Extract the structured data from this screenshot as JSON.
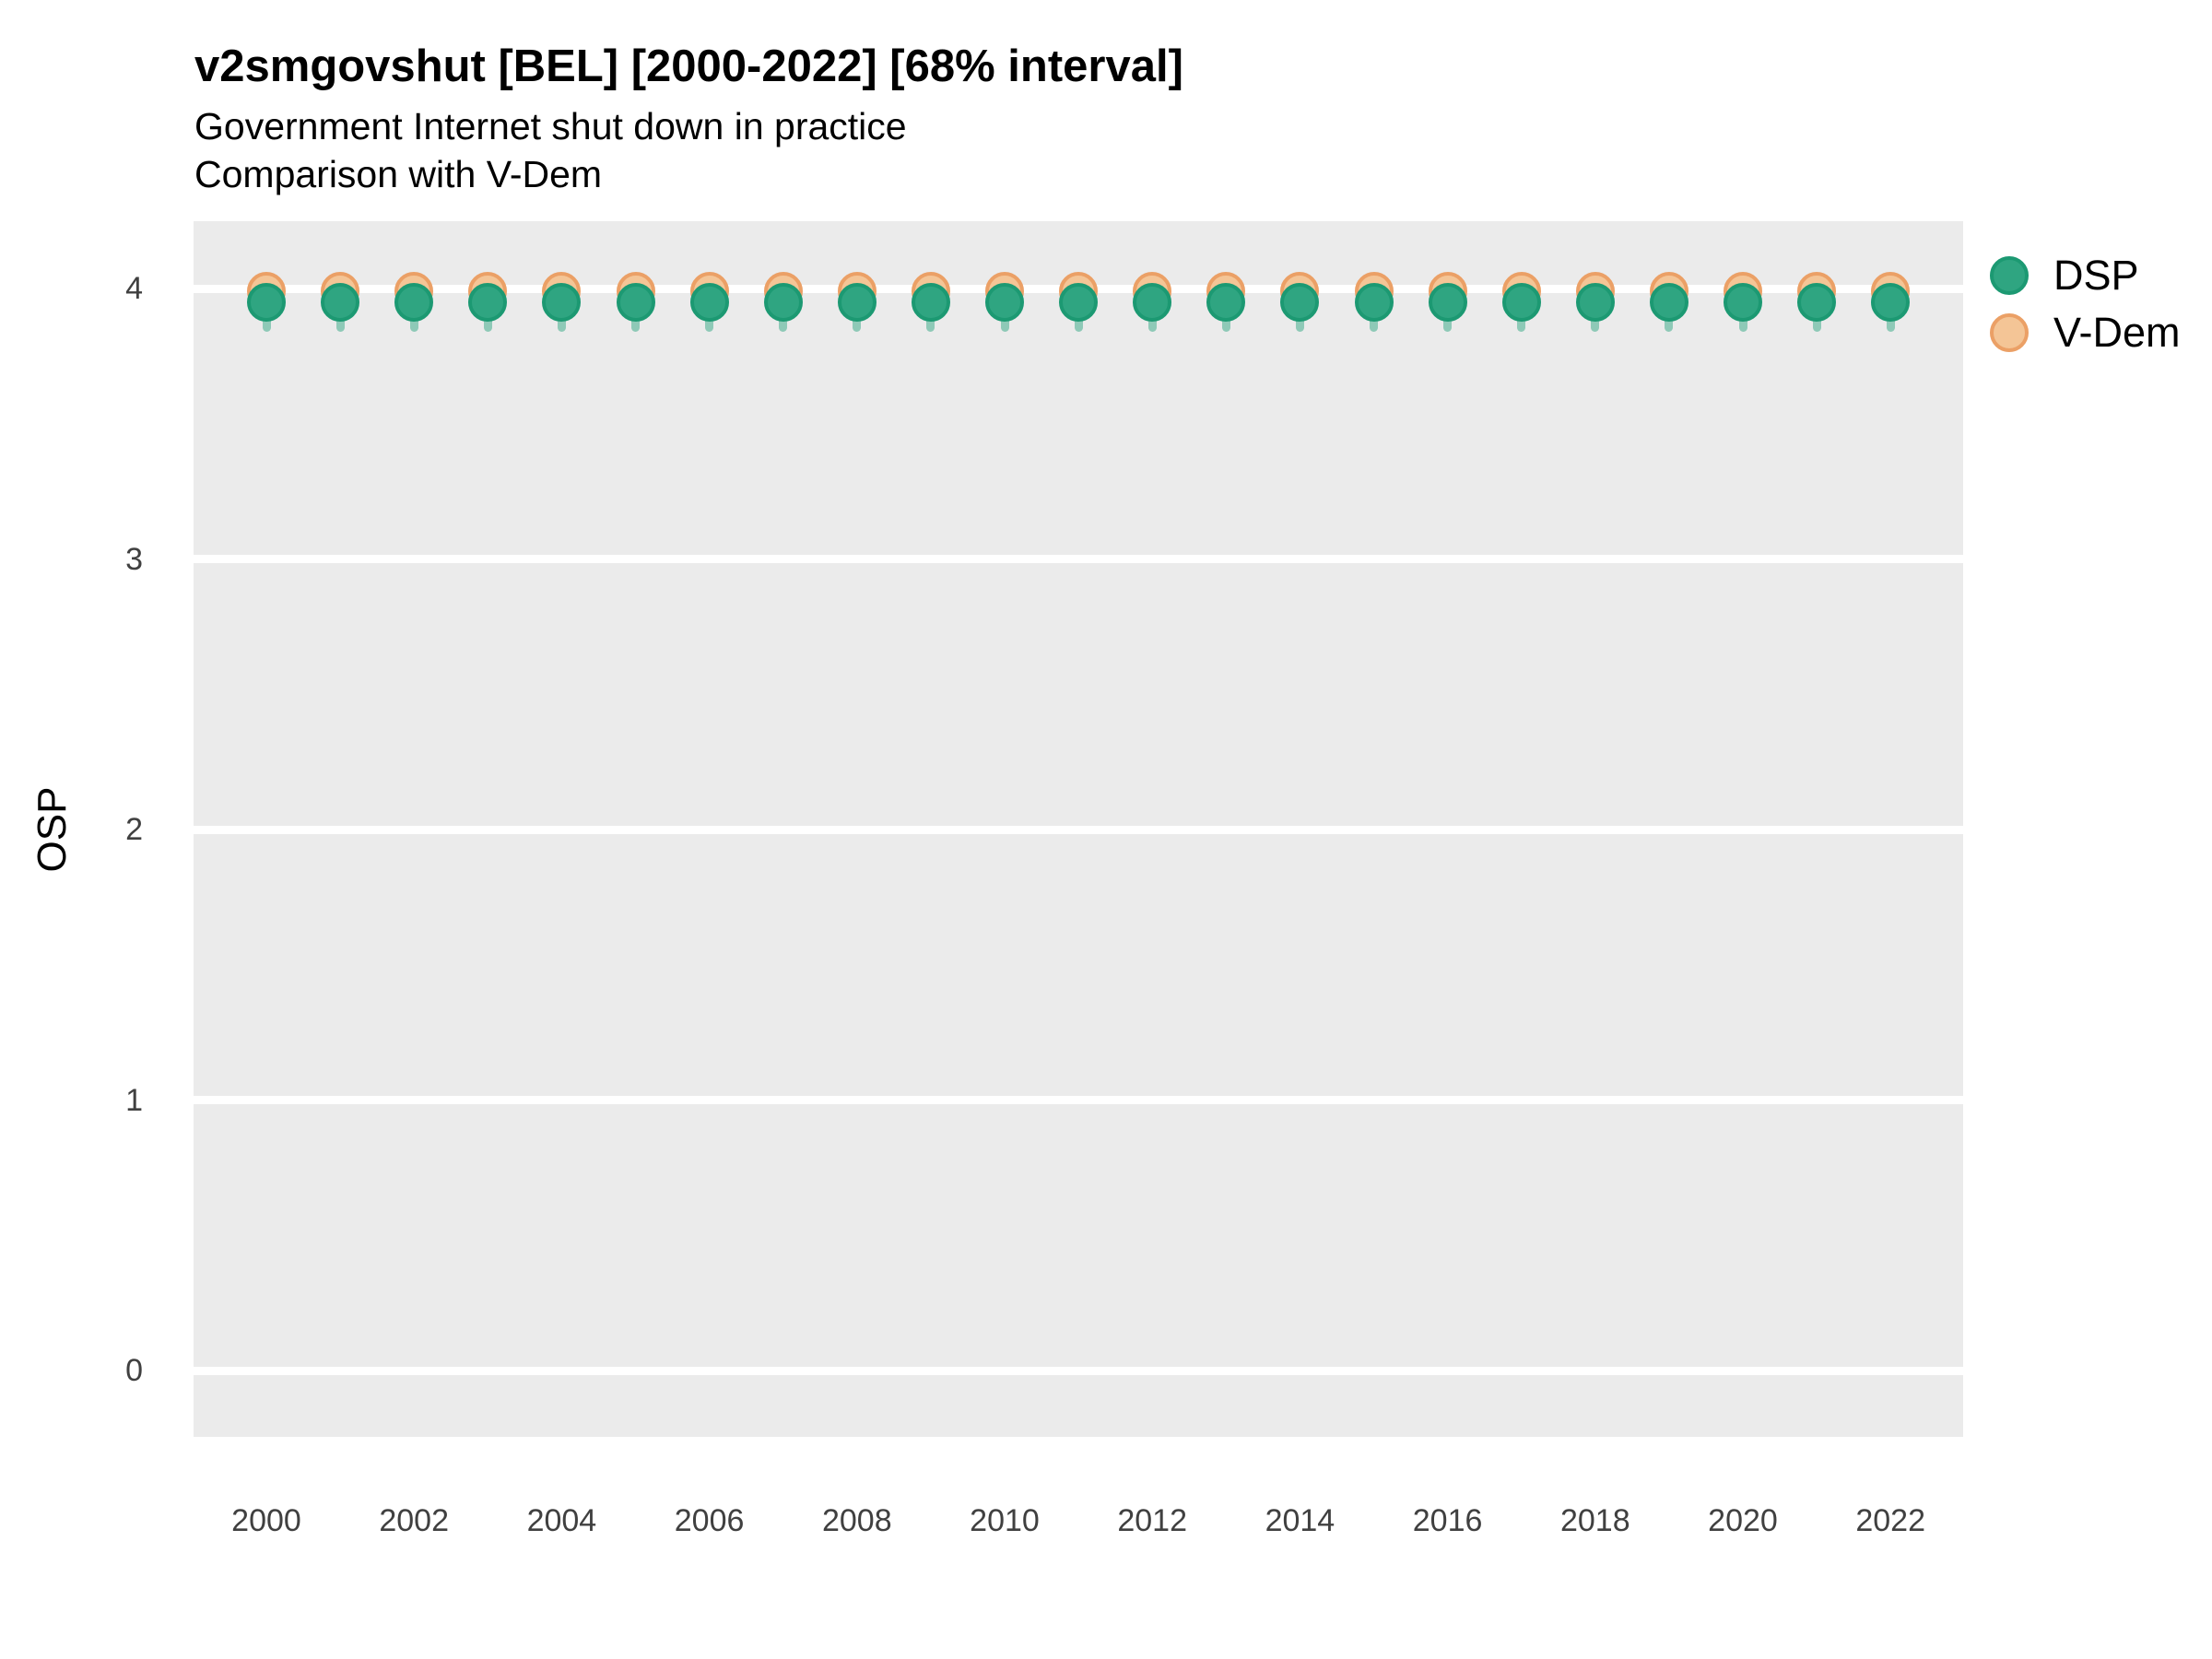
{
  "header": {
    "title": "v2smgovshut [BEL] [2000-2022] [68% interval]",
    "subtitle_line1": "Government Internet shut down in practice",
    "subtitle_line2": "Comparison with V-Dem"
  },
  "axes": {
    "y_title": "OSP"
  },
  "legend": {
    "items": [
      {
        "label": "DSP",
        "fill": "#2FA581",
        "stroke": "#1C9972"
      },
      {
        "label": "V-Dem",
        "fill": "#F4C596",
        "stroke": "#EBA066"
      }
    ]
  },
  "chart_data": {
    "type": "scatter",
    "title": "v2smgovshut [BEL] [2000-2022] [68% interval]",
    "subtitle": [
      "Government Internet shut down in practice",
      "Comparison with V-Dem"
    ],
    "xlabel": "",
    "ylabel": "OSP",
    "x": [
      2000,
      2001,
      2002,
      2003,
      2004,
      2005,
      2006,
      2007,
      2008,
      2009,
      2010,
      2011,
      2012,
      2013,
      2014,
      2015,
      2016,
      2017,
      2018,
      2019,
      2020,
      2021,
      2022
    ],
    "series": [
      {
        "name": "DSP",
        "color": "#2FA581",
        "stroke": "#1C9972",
        "interval_color": "rgba(49,168,132,0.5)",
        "values": [
          3.95,
          3.95,
          3.95,
          3.95,
          3.95,
          3.95,
          3.95,
          3.95,
          3.95,
          3.95,
          3.95,
          3.95,
          3.95,
          3.95,
          3.95,
          3.95,
          3.95,
          3.95,
          3.95,
          3.95,
          3.95,
          3.95,
          3.95
        ],
        "interval_low": [
          3.84,
          3.84,
          3.84,
          3.84,
          3.84,
          3.84,
          3.84,
          3.84,
          3.84,
          3.84,
          3.84,
          3.84,
          3.84,
          3.84,
          3.84,
          3.84,
          3.84,
          3.84,
          3.84,
          3.84,
          3.84,
          3.84,
          3.84
        ],
        "interval_high": [
          4.0,
          4.0,
          4.0,
          4.0,
          4.0,
          4.0,
          4.0,
          4.0,
          4.0,
          4.0,
          4.0,
          4.0,
          4.0,
          4.0,
          4.0,
          4.0,
          4.0,
          4.0,
          4.0,
          4.0,
          4.0,
          4.0,
          4.0
        ]
      },
      {
        "name": "V-Dem",
        "color": "#F4C596",
        "stroke": "#EBA066",
        "values": [
          3.99,
          3.99,
          3.99,
          3.99,
          3.99,
          3.99,
          3.99,
          3.99,
          3.99,
          3.99,
          3.99,
          3.99,
          3.99,
          3.99,
          3.99,
          3.99,
          3.99,
          3.99,
          3.99,
          3.99,
          3.99,
          3.99,
          3.99
        ]
      }
    ],
    "yticks": [
      0,
      1,
      2,
      3,
      4
    ],
    "xticks": [
      2000,
      2002,
      2004,
      2006,
      2008,
      2010,
      2012,
      2014,
      2016,
      2018,
      2020,
      2022
    ],
    "ylim": [
      -0.25,
      4.25
    ],
    "grid": "horizontal-major-only",
    "panel_bg": "#EBEBEB",
    "grid_color": "#FFFFFF",
    "legend_position": "top-right"
  }
}
